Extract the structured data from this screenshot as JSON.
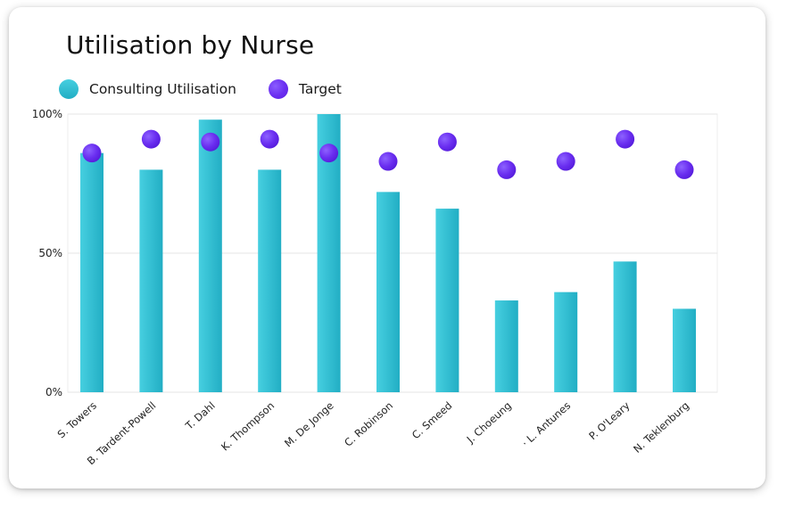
{
  "chart_data": {
    "type": "bar",
    "title": "Utilisation by Nurse",
    "xlabel": "",
    "ylabel": "",
    "ylim": [
      0,
      100
    ],
    "yticks": [
      {
        "value": 0,
        "label": "0%"
      },
      {
        "value": 50,
        "label": "50%"
      },
      {
        "value": 100,
        "label": "100%"
      }
    ],
    "legend_position": "top-left",
    "categories": [
      "S. Towers",
      "B. Tardent-Powell",
      "T. Dahl",
      "K. Thompson",
      "M. De Jonge",
      "C. Robinson",
      "C. Smeed",
      "J. Choeung",
      "· L. Antunes",
      "P. O'Leary",
      "N. Teklenburg"
    ],
    "series": [
      {
        "name": "Consulting Utilisation",
        "kind": "bar",
        "color": "#2eb8cc",
        "values": [
          86,
          80,
          98,
          80,
          100,
          72,
          66,
          33,
          36,
          47,
          30
        ]
      },
      {
        "name": "Target",
        "kind": "point",
        "color": "#6a2ef0",
        "values": [
          86,
          91,
          90,
          91,
          86,
          83,
          90,
          80,
          83,
          91,
          80
        ]
      }
    ]
  }
}
